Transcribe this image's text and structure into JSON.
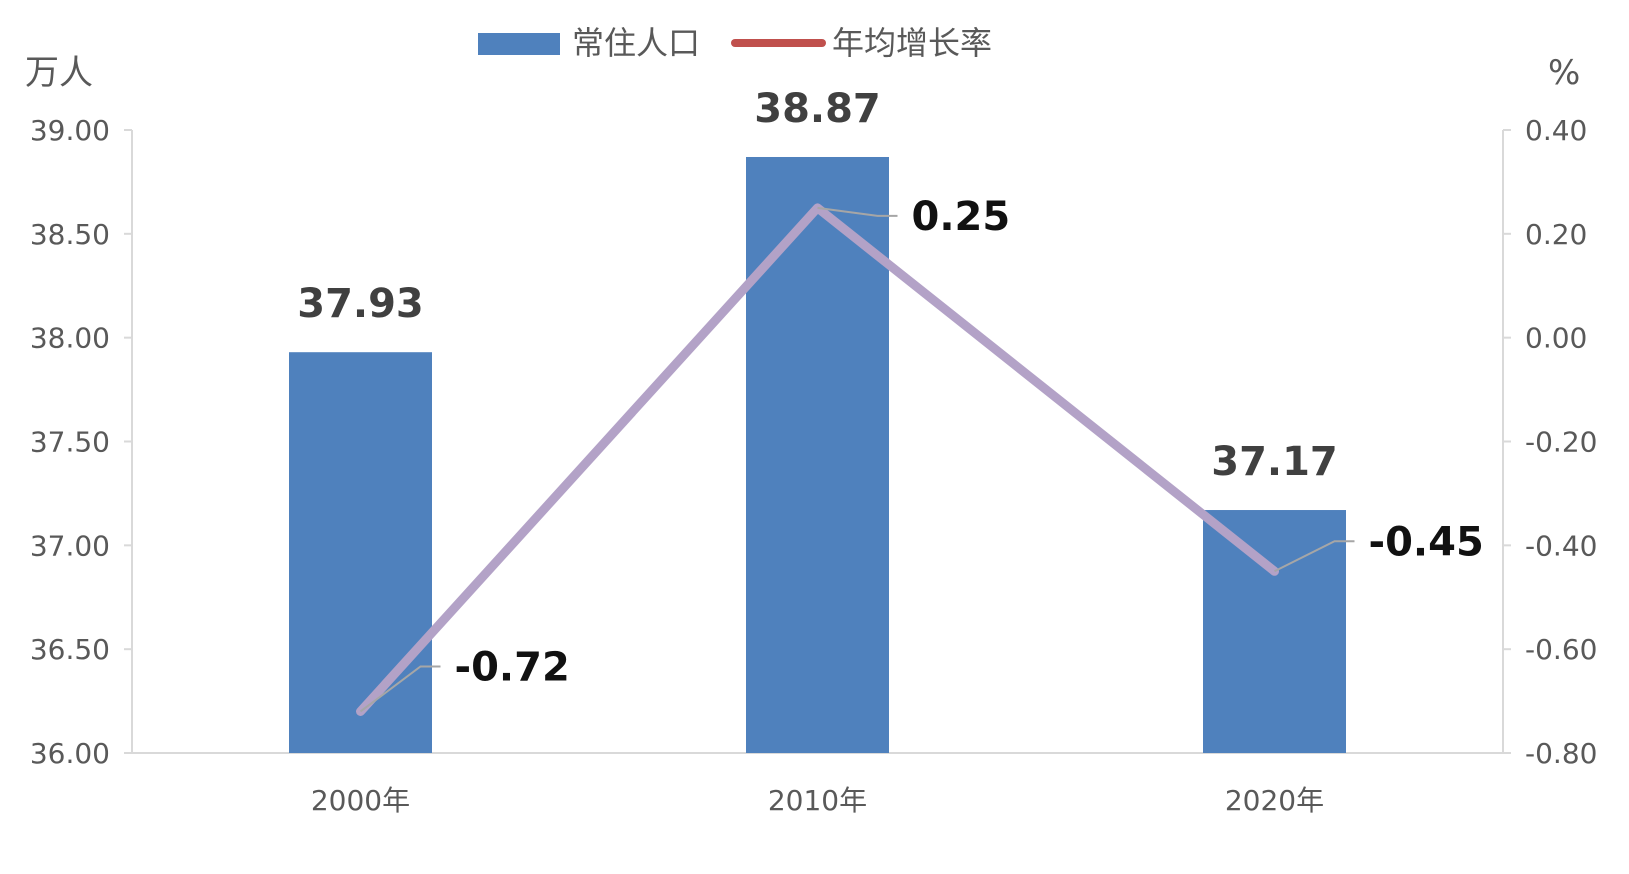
{
  "chart_data": {
    "type": "bar",
    "categories": [
      "2000年",
      "2010年",
      "2020年"
    ],
    "series": [
      {
        "name": "常住人口",
        "type": "bar",
        "axis": "left",
        "values": [
          37.93,
          38.87,
          37.17
        ],
        "color": "#4f81bd"
      },
      {
        "name": "年均增长率",
        "type": "line",
        "axis": "right",
        "values": [
          -0.72,
          0.25,
          -0.45
        ],
        "color": "#b3a2c7",
        "legend_color": "#c0504d"
      }
    ],
    "left_axis": {
      "unit": "万人",
      "ylim": [
        36.0,
        39.0
      ],
      "ticks": [
        "36.00",
        "36.50",
        "37.00",
        "37.50",
        "38.00",
        "38.50",
        "39.00"
      ]
    },
    "right_axis": {
      "unit": "%",
      "ylim": [
        -0.8,
        0.4
      ],
      "ticks": [
        "-0.80",
        "-0.60",
        "-0.40",
        "-0.20",
        "0.00",
        "0.20",
        "0.40"
      ]
    },
    "bar_labels": [
      "37.93",
      "38.87",
      "37.17"
    ],
    "line_labels": [
      "-0.72",
      "0.25",
      "-0.45"
    ],
    "legend_position": "top-center",
    "grid": false
  }
}
